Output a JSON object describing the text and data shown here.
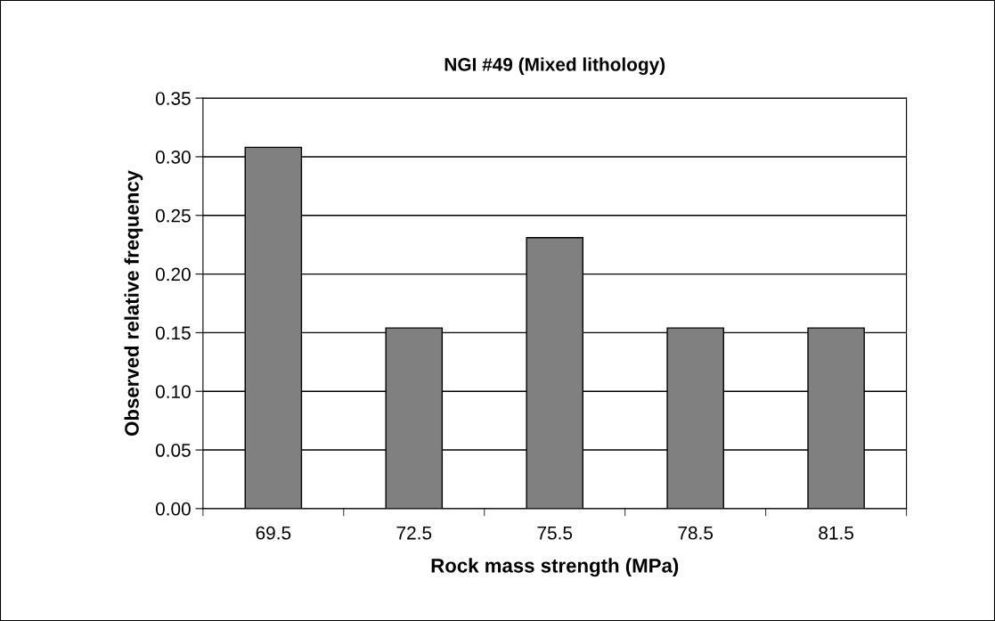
{
  "chart_data": {
    "type": "bar",
    "title": "NGI #49 (Mixed lithology)",
    "xlabel": "Rock mass strength (MPa)",
    "ylabel": "Observed relative frequency",
    "categories": [
      "69.5",
      "72.5",
      "75.5",
      "78.5",
      "81.5"
    ],
    "values": [
      0.308,
      0.154,
      0.231,
      0.154,
      0.154
    ],
    "color": "#808080",
    "ylim": [
      0,
      0.35
    ],
    "yticks": [
      {
        "value": 0,
        "label": "0.00"
      },
      {
        "value": 0.05,
        "label": "0.05"
      },
      {
        "value": 0.1,
        "label": "0.10"
      },
      {
        "value": 0.15,
        "label": "0.15"
      },
      {
        "value": 0.2,
        "label": "0.20"
      },
      {
        "value": 0.25,
        "label": "0.25"
      },
      {
        "value": 0.3,
        "label": "0.30"
      },
      {
        "value": 0.35,
        "label": "0.35"
      }
    ],
    "grid": "y",
    "legend": false
  }
}
